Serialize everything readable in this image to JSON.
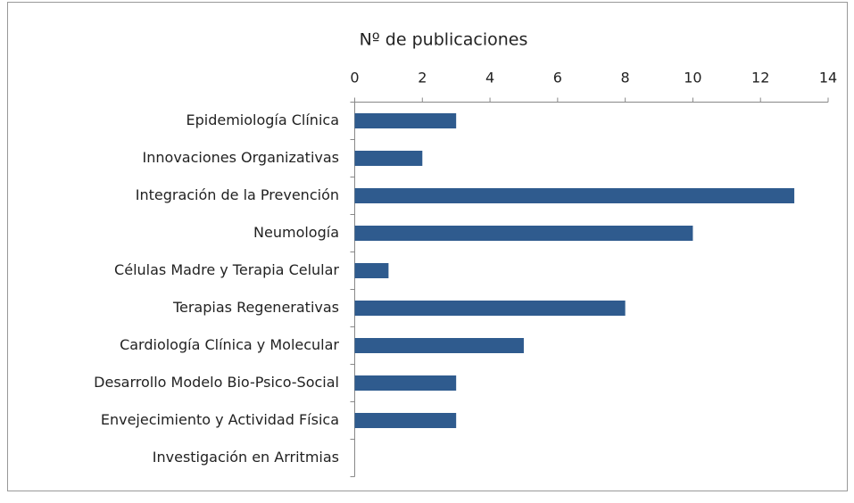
{
  "chart_data": {
    "type": "bar",
    "orientation": "horizontal",
    "title": "Nº de publicaciones",
    "categories": [
      "Epidemiología Clínica",
      "Innovaciones Organizativas",
      "Integración de la Prevención",
      "Neumología",
      "Células Madre y Terapia Celular",
      "Terapias Regenerativas",
      "Cardiología Clínica y Molecular",
      "Desarrollo Modelo Bio-Psico-Social",
      "Envejecimiento y Actividad Física",
      "Investigación en Arritmias"
    ],
    "values": [
      3,
      2,
      13,
      10,
      1,
      8,
      5,
      3,
      3,
      0
    ],
    "color": "#2f5b8e",
    "xlim": [
      0,
      14
    ],
    "xticks": [
      0,
      2,
      4,
      6,
      8,
      10,
      12,
      14
    ],
    "grid": false
  }
}
